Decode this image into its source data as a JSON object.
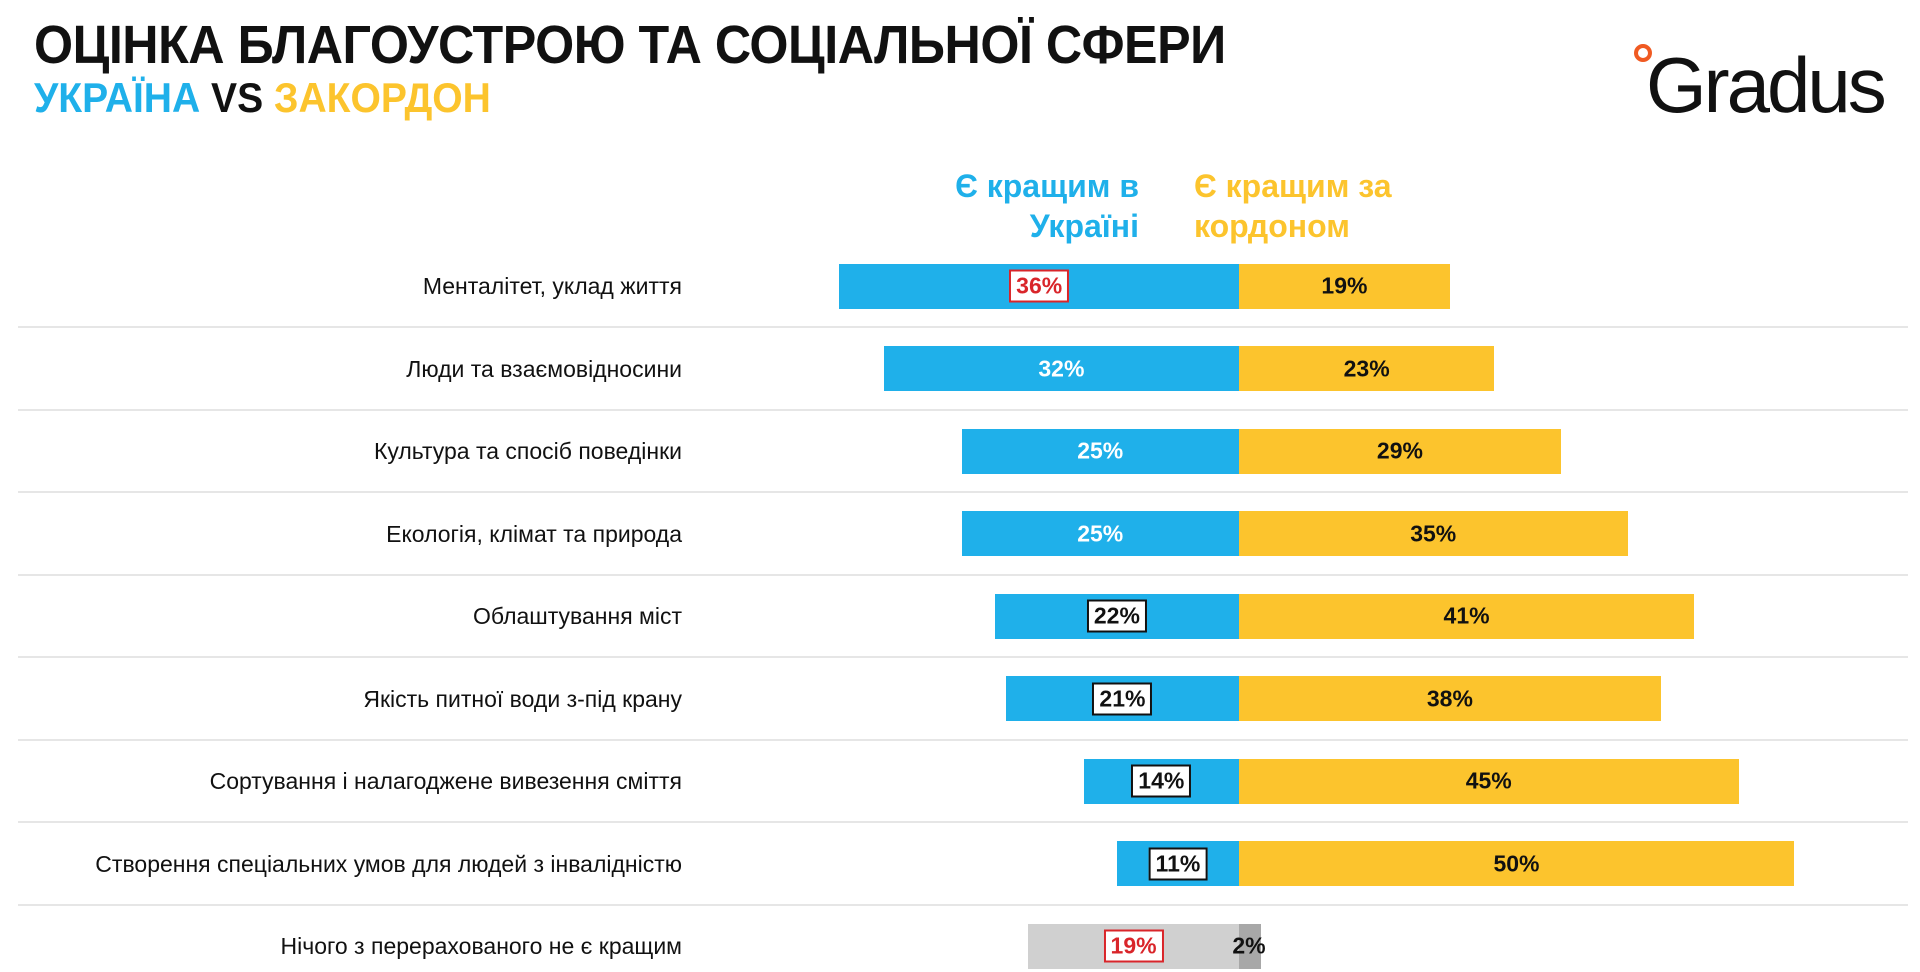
{
  "header": {
    "title": "ОЦІНКА БЛАГОУСТРОЮ ТА СОЦІАЛЬНОЇ СФЕРИ",
    "subtitle_a": "УКРАЇНА",
    "subtitle_vs": " VS ",
    "subtitle_b": "ЗАКОРДОН",
    "logo": "Gradus"
  },
  "colors": {
    "ukraine": "#1fb0ea",
    "abroad": "#fcc42d",
    "none": "#d0d0d0",
    "none_dark": "#a8a8a8",
    "highlight": "#d9252a"
  },
  "chart_data": {
    "type": "bar",
    "orientation": "horizontal-diverging",
    "legend": [
      "Є кращим в Україні",
      "Є кращим за кордоном"
    ],
    "categories": [
      "Менталітет, уклад життя",
      "Люди та взаємовідносини",
      "Культура та спосіб поведінки",
      "Екологія, клімат та природа",
      "Облаштування міст",
      "Якість питної води з-під крану",
      "Сортування і налагоджене вивезення сміття",
      "Створення спеціальних умов для людей з інвалідністю",
      "Нічого з перерахованого не є кращим"
    ],
    "series": [
      {
        "name": "Є кращим в Україні",
        "values": [
          36,
          32,
          25,
          25,
          22,
          21,
          14,
          11,
          19
        ],
        "labels": [
          "36%",
          "32%",
          "25%",
          "25%",
          "22%",
          "21%",
          "14%",
          "11%",
          "19%"
        ],
        "boxed": [
          "red",
          null,
          null,
          null,
          "black",
          "black",
          "black",
          "black",
          "red"
        ]
      },
      {
        "name": "Є кращим за кордоном",
        "values": [
          19,
          23,
          29,
          35,
          41,
          38,
          45,
          50,
          2
        ],
        "labels": [
          "19%",
          "23%",
          "29%",
          "35%",
          "41%",
          "38%",
          "45%",
          "50%",
          "2%"
        ]
      }
    ],
    "xlabel": "",
    "ylabel": "",
    "xlim": [
      -40,
      55
    ]
  }
}
